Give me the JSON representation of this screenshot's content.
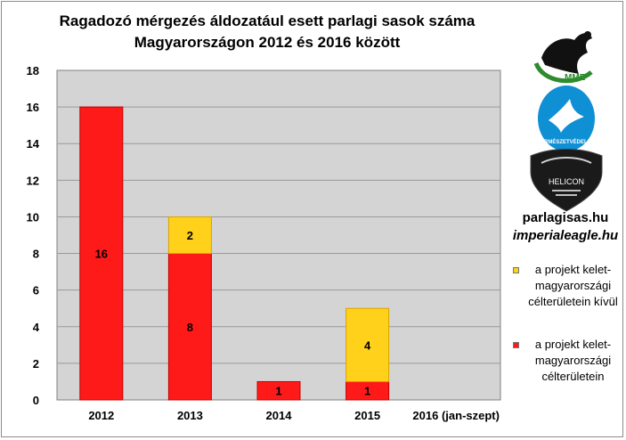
{
  "colors": {
    "red": "#ff1a1a",
    "red_dark": "#c40000",
    "yellow": "#ffd11a",
    "yellow_dark": "#d9a400",
    "plot_bg": "#d4d4d4",
    "grid": "#9a9a9a"
  },
  "chart_data": {
    "type": "bar",
    "stacked": true,
    "title": [
      "Ragadozó mérgezés áldozatául  esett parlagi sasok száma",
      "Magyarországon 2012 és 2016 között"
    ],
    "categories": [
      "2012",
      "2013",
      "2014",
      "2015",
      "2016 (jan-szept)"
    ],
    "series": [
      {
        "name": "a projekt kelet-magyarországi célterületein",
        "color": "#ff1a1a",
        "values": [
          16,
          8,
          1,
          1,
          0
        ]
      },
      {
        "name": "a projekt kelet-magyarországi célterületein kívül",
        "color": "#ffd11a",
        "values": [
          0,
          2,
          0,
          4,
          0
        ]
      }
    ],
    "yticks": [
      "0",
      "2",
      "4",
      "6",
      "8",
      "10",
      "12",
      "14",
      "16",
      "18"
    ],
    "ylim": [
      0,
      18
    ],
    "grid": true,
    "legend_position": "right"
  },
  "legend": [
    {
      "label": "a projekt kelet-magyarországi célterületein kívül",
      "color": "#ffd11a"
    },
    {
      "label": "a projekt kelet-magyarországi célterületein",
      "color": "#ff1a1a"
    }
  ],
  "sites": [
    "parlagisas.hu",
    "imperialeagle.hu"
  ],
  "logos": {
    "mme": {
      "icon": "eagle-bird-icon",
      "text": "MME"
    },
    "termeszetvedelem": {
      "icon": "flying-bird-icon",
      "text": "TERMÉSZETVÉDELEM"
    },
    "helicon": {
      "icon": "helicon-shield-icon",
      "text": "HELICON"
    }
  }
}
